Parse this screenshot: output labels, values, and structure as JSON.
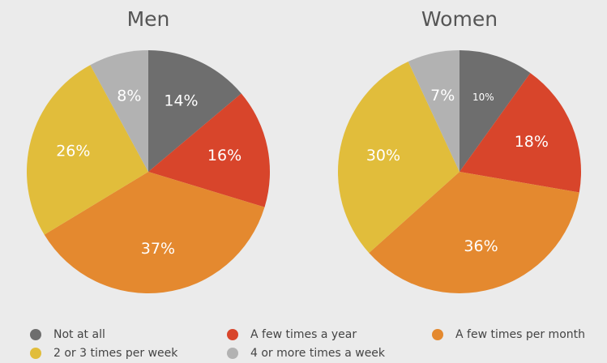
{
  "chart_data": [
    {
      "type": "pie",
      "title": "Men",
      "values": [
        14,
        16,
        37,
        26,
        8
      ],
      "value_labels": [
        "14%",
        "16%",
        "37%",
        "26%",
        "8%"
      ]
    },
    {
      "type": "pie",
      "title": "Women",
      "values": [
        10,
        18,
        36,
        30,
        7
      ],
      "value_labels": [
        "10%",
        "18%",
        "36%",
        "30%",
        "7%"
      ]
    }
  ],
  "legend": {
    "categories": [
      "Not at all",
      "A few times a year",
      "A few times per month",
      "2 or 3 times per week",
      "4 or more times a week"
    ],
    "colors": [
      "#6e6e6e",
      "#d8452b",
      "#e4892f",
      "#e1bd3b",
      "#b2b2b2"
    ]
  }
}
